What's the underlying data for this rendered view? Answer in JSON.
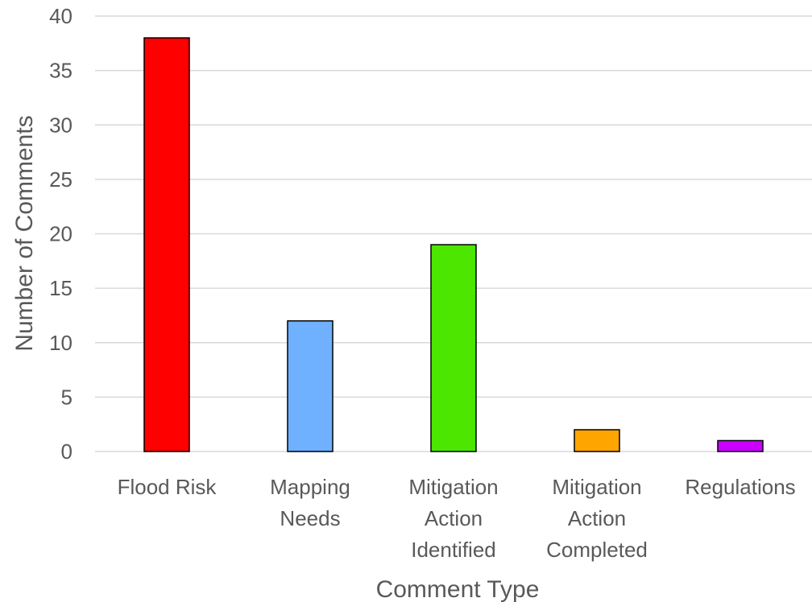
{
  "chart_data": {
    "type": "bar",
    "title": "",
    "xlabel": "Comment Type",
    "ylabel": "Number of Comments",
    "ylim": [
      0,
      40
    ],
    "yticks": [
      0,
      5,
      10,
      15,
      20,
      25,
      30,
      35,
      40
    ],
    "grid": true,
    "legend": "none",
    "categories": [
      [
        "Flood Risk"
      ],
      [
        "Mapping",
        "Needs"
      ],
      [
        "Mitigation",
        "Action",
        "Identified"
      ],
      [
        "Mitigation",
        "Action",
        "Completed"
      ],
      [
        "Regulations"
      ]
    ],
    "values": [
      38,
      12,
      19,
      2,
      1
    ],
    "colors": [
      "#ff0000",
      "#6fb0ff",
      "#4ce600",
      "#ffa500",
      "#cc00ff"
    ]
  }
}
